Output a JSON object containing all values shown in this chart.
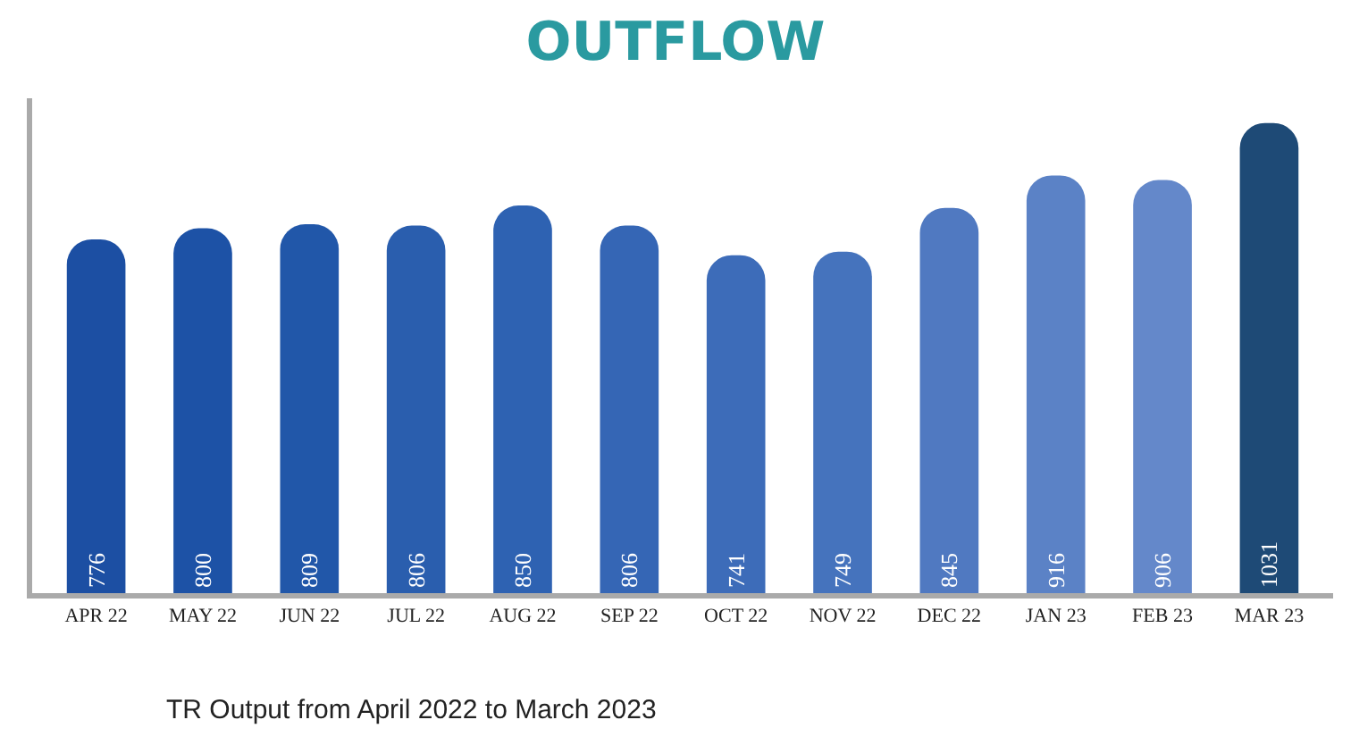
{
  "chart_data": {
    "type": "bar",
    "title": "OUTFLOW",
    "categories": [
      "APR 22",
      "MAY 22",
      "JUN 22",
      "JUL 22",
      "AUG 22",
      "SEP 22",
      "OCT 22",
      "NOV 22",
      "DEC 22",
      "JAN 23",
      "FEB 23",
      "MAR 23"
    ],
    "values": [
      776,
      800,
      809,
      806,
      850,
      806,
      741,
      749,
      845,
      916,
      906,
      1031
    ],
    "colors": [
      "#1c4fa3",
      "#1d52a6",
      "#2157a9",
      "#2a5eae",
      "#2e62b2",
      "#3566b5",
      "#3d6cb9",
      "#4573bd",
      "#5079c1",
      "#5b82c6",
      "#6488ca",
      "#1e4a76"
    ],
    "data_labels": true,
    "tick_labels": "x",
    "annotations": [
      "TR Output from April 2022 to March 2023"
    ]
  }
}
